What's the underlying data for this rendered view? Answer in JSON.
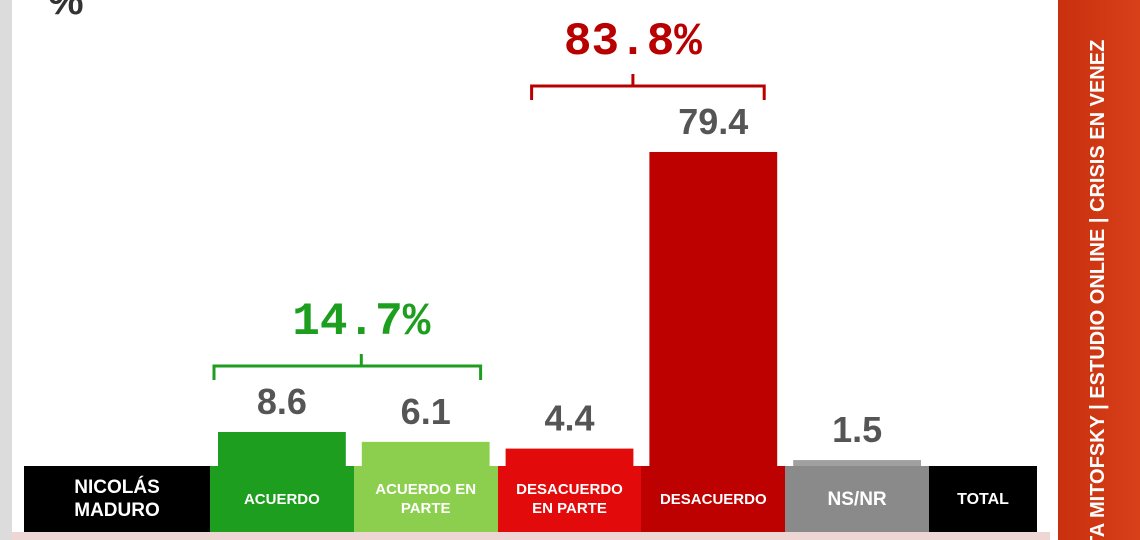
{
  "chart_data": {
    "type": "bar",
    "unit": "%",
    "row_label": "NICOLÁS MADURO",
    "total_label": "TOTAL",
    "categories": [
      "ACUERDO",
      "ACUERDO EN PARTE",
      "DESACUERDO EN PARTE",
      "DESACUERDO",
      "NS/NR"
    ],
    "values": [
      8.6,
      6.1,
      4.4,
      79.4,
      1.5
    ],
    "colors": [
      "#1e9e1e",
      "#8ccf4e",
      "#e20a0a",
      "#bd0000",
      "#8a8a8a"
    ],
    "ylim": [
      0,
      100
    ],
    "annotations": [
      {
        "text": "14.7%",
        "color": "#1e9e1e"
      },
      {
        "text": "83.8%",
        "color": "#b80000"
      }
    ],
    "side_banner": "TA MITOFSKY | ESTUDIO ONLINE | CRISIS EN VENEZ"
  }
}
